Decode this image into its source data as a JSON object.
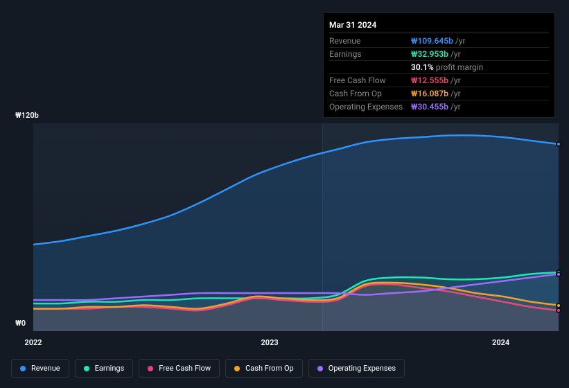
{
  "chart": {
    "type": "line-area",
    "background_color": "#131a24",
    "plot_background_gradient": [
      "#1b2430",
      "#16202b"
    ],
    "grid_vertical_color": "#2a3440",
    "y_axis": {
      "top_label": "₩120b",
      "bottom_label": "₩0",
      "min": 0,
      "max": 120,
      "label_color": "#ffffff",
      "label_fontsize": 11
    },
    "x_axis": {
      "labels": [
        "2022",
        "2023",
        "2024"
      ],
      "positions": [
        0.0,
        0.45,
        0.89
      ],
      "label_color": "#ffffff",
      "label_fontsize": 11
    },
    "vertical_guide_position": 0.55,
    "series": [
      {
        "id": "revenue",
        "name": "Revenue",
        "color": "#2e93fa",
        "fill_opacity": 0.18,
        "points": [
          50,
          52,
          55,
          58,
          62,
          67,
          74,
          82,
          90,
          96,
          101,
          105,
          109,
          111,
          112,
          113,
          113,
          112,
          110,
          108
        ]
      },
      {
        "id": "earnings",
        "name": "Earnings",
        "color": "#1de9b6",
        "fill_opacity": 0.1,
        "points": [
          16,
          16,
          17,
          17,
          18,
          18,
          19,
          19,
          19,
          19,
          19,
          21,
          29,
          31,
          31,
          30,
          30,
          31,
          33,
          34
        ]
      },
      {
        "id": "fcf",
        "name": "Free Cash Flow",
        "color": "#ec407a",
        "fill_opacity": 0.08,
        "points": [
          13,
          13,
          13,
          14,
          14,
          13,
          12,
          15,
          19,
          18,
          17,
          18,
          26,
          27,
          25,
          23,
          20,
          17,
          14,
          12
        ]
      },
      {
        "id": "cfo",
        "name": "Cash From Op",
        "color": "#f5a623",
        "fill_opacity": 0.08,
        "points": [
          13,
          13,
          14,
          14,
          15,
          14,
          13,
          16,
          20,
          19,
          18,
          19,
          27,
          28,
          27,
          25,
          22,
          20,
          17,
          15
        ]
      },
      {
        "id": "opex",
        "name": "Operating Expenses",
        "color": "#9c6cff",
        "fill_opacity": 0.08,
        "points": [
          18,
          18,
          18,
          19,
          20,
          21,
          22,
          22,
          22,
          22,
          22,
          22,
          21,
          22,
          23,
          25,
          27,
          29,
          31,
          33
        ]
      }
    ]
  },
  "tooltip": {
    "date": "Mar 31 2024",
    "rows": [
      {
        "label": "Revenue",
        "value": "₩109.645b",
        "suffix": "/yr",
        "color": "#2e93fa"
      },
      {
        "label": "Earnings",
        "value": "₩32.953b",
        "suffix": "/yr",
        "color": "#1de9b6"
      },
      {
        "label": "",
        "value": "30.1%",
        "suffix": "profit margin",
        "color": "#ffffff",
        "is_pm": true
      },
      {
        "label": "Free Cash Flow",
        "value": "₩12.555b",
        "suffix": "/yr",
        "color": "#ec407a"
      },
      {
        "label": "Cash From Op",
        "value": "₩16.087b",
        "suffix": "/yr",
        "color": "#f5a623"
      },
      {
        "label": "Operating Expenses",
        "value": "₩30.455b",
        "suffix": "/yr",
        "color": "#9c6cff"
      }
    ]
  },
  "legend": {
    "items": [
      {
        "id": "revenue",
        "label": "Revenue",
        "color": "#2e93fa"
      },
      {
        "id": "earnings",
        "label": "Earnings",
        "color": "#1de9b6"
      },
      {
        "id": "fcf",
        "label": "Free Cash Flow",
        "color": "#ec407a"
      },
      {
        "id": "cfo",
        "label": "Cash From Op",
        "color": "#f5a623"
      },
      {
        "id": "opex",
        "label": "Operating Expenses",
        "color": "#9c6cff"
      }
    ],
    "border_color": "#2a3440",
    "text_color": "#ffffff",
    "fontsize": 11
  }
}
